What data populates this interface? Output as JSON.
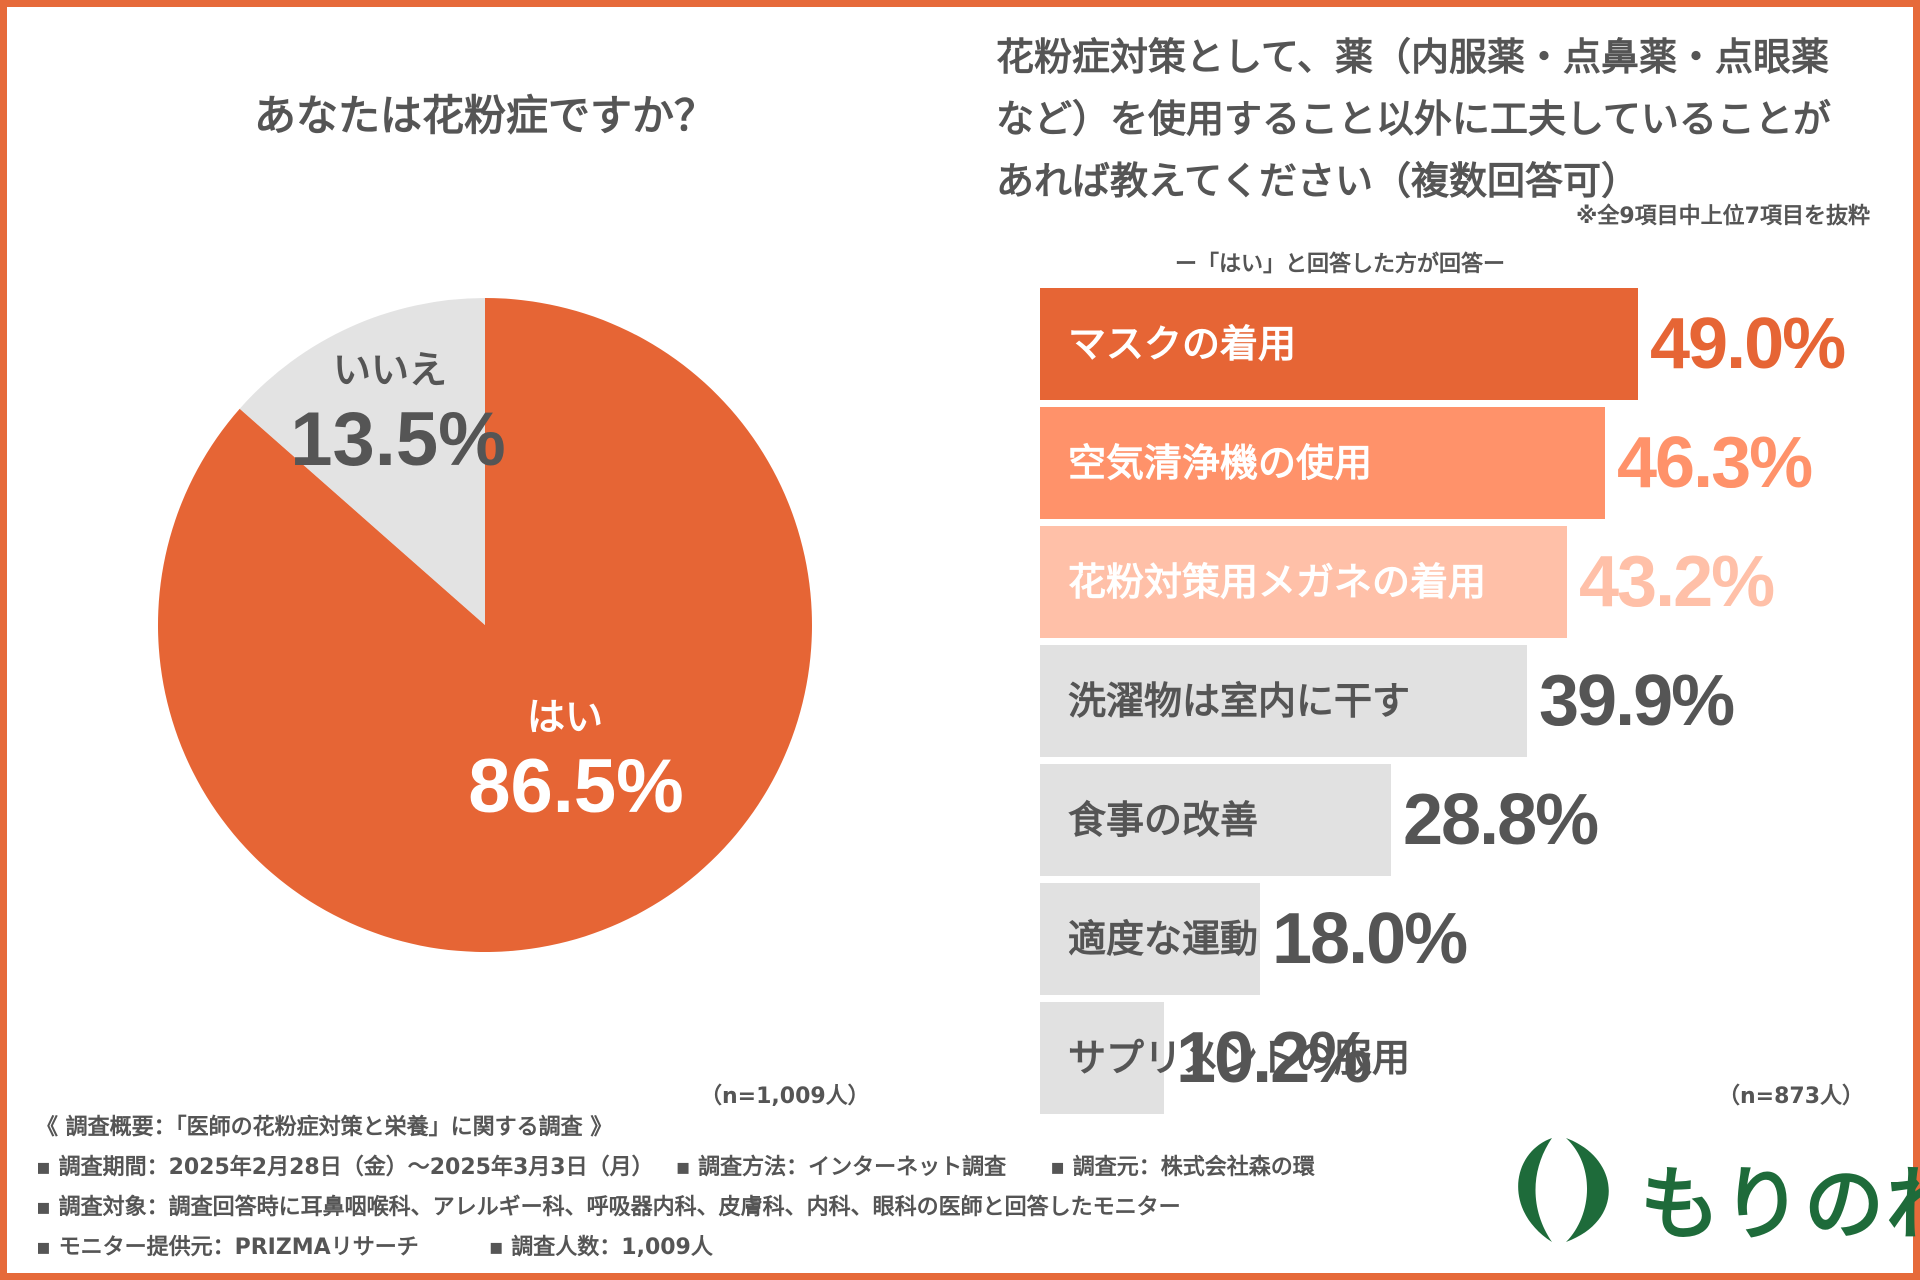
{
  "colors": {
    "frame": "#e66a3a",
    "pie_yes": "#e66535",
    "pie_no": "#e3e3e3",
    "bar_1": "#e66535",
    "bar_2": "#ff926a",
    "bar_3": "#ffc0a8",
    "bar_gray": "#e1e1e1",
    "text_gray": "#555555",
    "logo_green": "#1e6b3a"
  },
  "chart_data": [
    {
      "type": "pie",
      "title": "あなたは花粉症ですか？",
      "slices": [
        {
          "label": "はい",
          "value": 86.5,
          "value_text": "86.5%"
        },
        {
          "label": "いいえ",
          "value": 13.5,
          "value_text": "13.5%"
        }
      ],
      "n_text": "（n=1,009人）"
    },
    {
      "type": "bar",
      "title": "花粉症対策として、薬（内服薬・点鼻薬・点眼薬など）を使用すること以外に工夫していることがあれば教えてください（複数回答可）",
      "title_lines": [
        "花粉症対策として、薬（内服薬・点鼻薬・点眼薬",
        "など）を使用すること以外に工夫していることが",
        "あれば教えてください（複数回答可）"
      ],
      "note": "※全9項目中上位7項目を抜粋",
      "subtitle": "ー「はい」と回答した方が回答ー",
      "categories": [
        "マスクの着用",
        "空気清浄機の使用",
        "花粉対策用メガネの着用",
        "洗濯物は室内に干す",
        "食事の改善",
        "適度な運動",
        "サプリメントの服用"
      ],
      "values": [
        49.0,
        46.3,
        43.2,
        39.9,
        28.8,
        18.0,
        10.2
      ],
      "value_texts": [
        "49.0%",
        "46.3%",
        "43.2%",
        "39.9%",
        "28.8%",
        "18.0%",
        "10.2%"
      ],
      "unit": "%",
      "n_text": "（n=873人）"
    }
  ],
  "footer": {
    "heading": "《 調査概要：「医師の花粉症対策と栄養」に関する調査 》",
    "period": "▪ 調査期間：2025年2月28日（金）〜2025年3月3日（月）",
    "method": "▪ 調査方法：インターネット調査",
    "source": "▪ 調査元：株式会社森の環",
    "target": "▪ 調査対象：調査回答時に耳鼻咽喉科、アレルギー科、呼吸器内科、皮膚科、内科、眼科の医師と回答したモニター",
    "provider": "▪ モニター提供元：PRIZMAリサーチ",
    "count": "▪ 調査人数：1,009人"
  },
  "logo": {
    "text": "もりのわ"
  }
}
